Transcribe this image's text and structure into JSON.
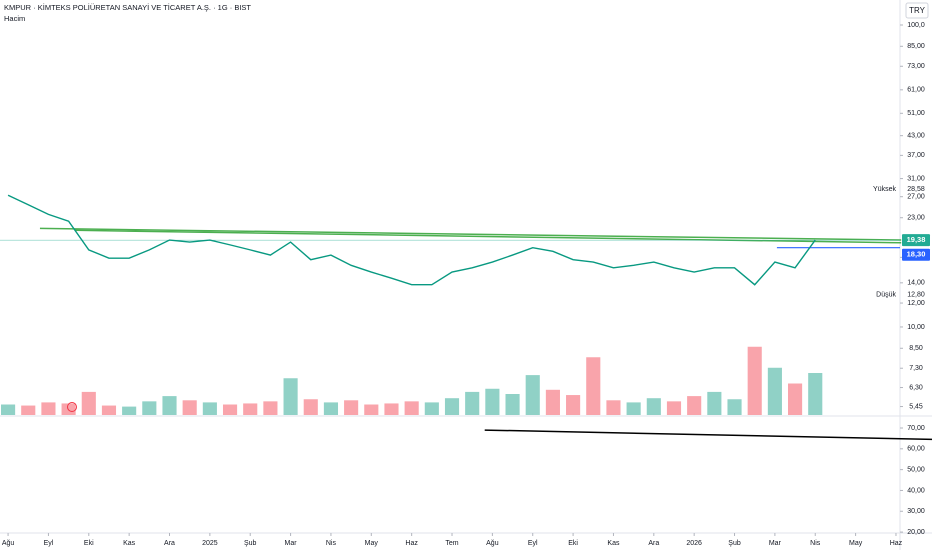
{
  "chart_data": {
    "type": "line",
    "title": "KMPUR · KİMTEKS POLİÜRETAN SANAYİ VE TİCARET A.Ş. · 1G · BIST",
    "subtitle": "Hacim",
    "currency": "TRY",
    "log_scale": true,
    "color": "#089981",
    "down_color": "#f23645",
    "x": [
      0,
      0.5,
      1,
      1.5,
      2,
      2.5,
      3,
      3.5,
      4,
      4.5,
      5,
      5.5,
      6,
      6.5,
      7,
      7.5,
      8,
      8.5,
      9,
      9.5,
      10,
      10.5,
      11,
      11.5,
      12,
      12.5,
      13,
      13.5,
      14,
      14.5,
      15,
      15.5,
      16,
      16.5,
      17,
      17.5,
      18,
      18.5,
      19,
      19.5,
      20
    ],
    "values": [
      27.3,
      25.4,
      23.6,
      22.4,
      18.0,
      16.9,
      16.9,
      18.0,
      19.4,
      19.1,
      19.4,
      18.7,
      18.0,
      17.3,
      19.1,
      16.7,
      17.3,
      16.0,
      15.2,
      14.5,
      13.8,
      13.8,
      15.2,
      15.7,
      16.4,
      17.3,
      18.3,
      17.8,
      16.7,
      16.4,
      15.7,
      16.0,
      16.4,
      15.7,
      15.2,
      15.7,
      15.7,
      13.8,
      16.4,
      15.7,
      19.4
    ],
    "volume": {
      "name": "Hacim",
      "values": [
        10,
        9,
        12,
        11,
        22,
        9,
        8,
        13,
        18,
        14,
        12,
        10,
        11,
        13,
        35,
        15,
        12,
        14,
        10,
        11,
        13,
        12,
        16,
        22,
        25,
        20,
        38,
        24,
        19,
        55,
        14,
        12,
        16,
        13,
        18,
        22,
        15,
        65,
        45,
        30,
        40
      ],
      "vlim": [
        0,
        100
      ]
    },
    "xlim": [
      -0.2,
      22.1
    ],
    "xticks": [
      {
        "value": 0,
        "label": "Ağu"
      },
      {
        "value": 1,
        "label": "Eyl"
      },
      {
        "value": 2,
        "label": "Eki"
      },
      {
        "value": 3,
        "label": "Kas"
      },
      {
        "value": 4,
        "label": "Ara"
      },
      {
        "value": 5,
        "label": "2025"
      },
      {
        "value": 6,
        "label": "Şub"
      },
      {
        "value": 7,
        "label": "Mar"
      },
      {
        "value": 8,
        "label": "Nis"
      },
      {
        "value": 9,
        "label": "May"
      },
      {
        "value": 10,
        "label": "Haz"
      },
      {
        "value": 11,
        "label": "Tem"
      },
      {
        "value": 12,
        "label": "Ağu"
      },
      {
        "value": 13,
        "label": "Eyl"
      },
      {
        "value": 14,
        "label": "Eki"
      },
      {
        "value": 15,
        "label": "Kas"
      },
      {
        "value": 16,
        "label": "Ara"
      },
      {
        "value": 17,
        "label": "2026"
      },
      {
        "value": 18,
        "label": "Şub"
      },
      {
        "value": 19,
        "label": "Mar"
      },
      {
        "value": 20,
        "label": "Nis"
      },
      {
        "value": 21,
        "label": "May"
      },
      {
        "value": 22,
        "label": "Haz"
      }
    ],
    "ylim": [
      5.11,
      121
    ],
    "yticks": [
      {
        "value": 100,
        "label": "100,0"
      },
      {
        "value": 85,
        "label": "85,00"
      },
      {
        "value": 73,
        "label": "73,00"
      },
      {
        "value": 61,
        "label": "61,00"
      },
      {
        "value": 51,
        "label": "51,00"
      },
      {
        "value": 43,
        "label": "43,00"
      },
      {
        "value": 37,
        "label": "37,00"
      },
      {
        "value": 31,
        "label": "31,00"
      },
      {
        "value": 27,
        "label": "27,00"
      },
      {
        "value": 23,
        "label": "23,00"
      },
      {
        "value": 17,
        "label": "17,00"
      },
      {
        "value": 14,
        "label": "14,00"
      },
      {
        "value": 12,
        "label": "12,00"
      },
      {
        "value": 10,
        "label": "10,00"
      },
      {
        "value": 8.5,
        "label": "8,50"
      },
      {
        "value": 7.3,
        "label": "7,30"
      },
      {
        "value": 6.3,
        "label": "6,30"
      },
      {
        "value": 5.45,
        "label": "5,45"
      }
    ],
    "high": {
      "label": "Yüksek",
      "value": 28.58,
      "value_label": "28,58"
    },
    "low": {
      "label": "Düşük",
      "value": 12.8,
      "value_label": "12,80"
    },
    "last": {
      "value": 19.38,
      "value_label": "19,38",
      "color": "#22ab94"
    },
    "level": {
      "value": 18.3,
      "value_label": "18,30",
      "x": 19.05,
      "color": "#2962ff"
    },
    "trendlines": [
      {
        "x": [
          0.79,
          22.13
        ],
        "values": [
          21.2,
          19.4
        ],
        "color": "#4caf50"
      },
      {
        "x": [
          1.66,
          22.13
        ],
        "values": [
          20.9,
          19.0
        ],
        "color": "#4caf50"
      }
    ],
    "indicator": {
      "ylim": [
        18.6,
        74.8
      ],
      "yticks": [
        {
          "value": 70,
          "label": "70,00"
        },
        {
          "value": 60,
          "label": "60,00"
        },
        {
          "value": 50,
          "label": "50,00"
        },
        {
          "value": 40,
          "label": "40,00"
        },
        {
          "value": 30,
          "label": "30,00"
        },
        {
          "value": 20,
          "label": "20,00"
        }
      ],
      "x": [
        11.81,
        22.93
      ],
      "values": [
        69,
        64.5
      ],
      "color": "#000000"
    }
  }
}
